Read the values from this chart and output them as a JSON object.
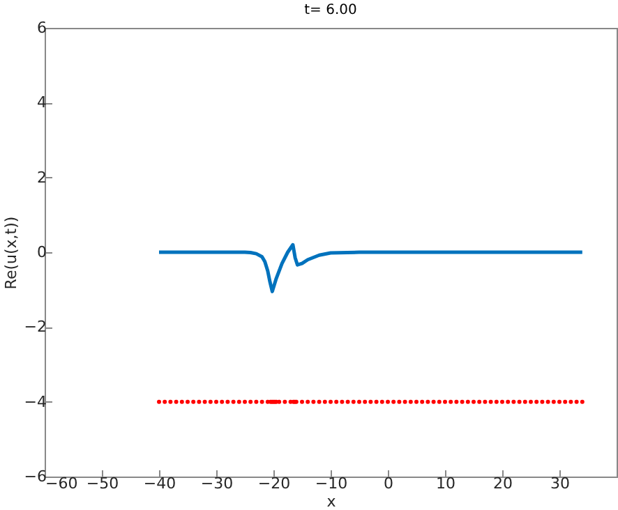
{
  "chart_data": {
    "type": "line",
    "title": "t= 6.00",
    "xlabel": "x",
    "ylabel": "Re(u(x,t))",
    "xlim": [
      -60,
      40
    ],
    "xticks": [
      -60,
      -50,
      -40,
      -30,
      -20,
      -10,
      0,
      10,
      20,
      30
    ],
    "ylim": [
      -6,
      6
    ],
    "yticks": [
      -6,
      -4,
      -2,
      0,
      2,
      4,
      6
    ],
    "series": [
      {
        "color": "#0072bd",
        "x": [
          -40,
          -30,
          -25,
          -24,
          -23,
          -22,
          -21.5,
          -21,
          -20.6,
          -20.2,
          -19.5,
          -18.5,
          -17.5,
          -16.6,
          -16.2,
          -15.8,
          -15,
          -14,
          -12,
          -10,
          -5,
          0,
          10,
          20,
          34
        ],
        "values": [
          0,
          0,
          0,
          -0.01,
          -0.04,
          -0.12,
          -0.25,
          -0.5,
          -0.8,
          -1.05,
          -0.7,
          -0.3,
          0,
          0.2,
          -0.15,
          -0.34,
          -0.3,
          -0.2,
          -0.08,
          -0.02,
          0,
          0,
          0,
          0,
          0
        ]
      },
      {
        "type": "scatter",
        "color": "#ff0000",
        "x": [
          -40,
          -39,
          -38,
          -37,
          -36,
          -35,
          -34,
          -33,
          -32,
          -31,
          -30,
          -29,
          -28,
          -27,
          -26,
          -25,
          -24,
          -23,
          -22,
          -21,
          -20.5,
          -20.25,
          -20,
          -19.75,
          -19.5,
          -19,
          -18,
          -17,
          -16.5,
          -16.25,
          -16,
          -15,
          -14,
          -13,
          -12,
          -11,
          -10,
          -9,
          -8,
          -7,
          -6,
          -5,
          -4,
          -3,
          -2,
          -1,
          0,
          1,
          2,
          3,
          4,
          5,
          6,
          7,
          8,
          9,
          10,
          11,
          12,
          13,
          14,
          15,
          16,
          17,
          18,
          19,
          20,
          21,
          22,
          23,
          24,
          25,
          26,
          27,
          28,
          29,
          30,
          31,
          32,
          33,
          34
        ],
        "values": [
          -4,
          -4,
          -4,
          -4,
          -4,
          -4,
          -4,
          -4,
          -4,
          -4,
          -4,
          -4,
          -4,
          -4,
          -4,
          -4,
          -4,
          -4,
          -4,
          -4,
          -4,
          -4,
          -4,
          -4,
          -4,
          -4,
          -4,
          -4,
          -4,
          -4,
          -4,
          -4,
          -4,
          -4,
          -4,
          -4,
          -4,
          -4,
          -4,
          -4,
          -4,
          -4,
          -4,
          -4,
          -4,
          -4,
          -4,
          -4,
          -4,
          -4,
          -4,
          -4,
          -4,
          -4,
          -4,
          -4,
          -4,
          -4,
          -4,
          -4,
          -4,
          -4,
          -4,
          -4,
          -4,
          -4,
          -4,
          -4,
          -4,
          -4,
          -4,
          -4,
          -4,
          -4,
          -4,
          -4,
          -4,
          -4,
          -4,
          -4,
          -4
        ]
      }
    ]
  }
}
